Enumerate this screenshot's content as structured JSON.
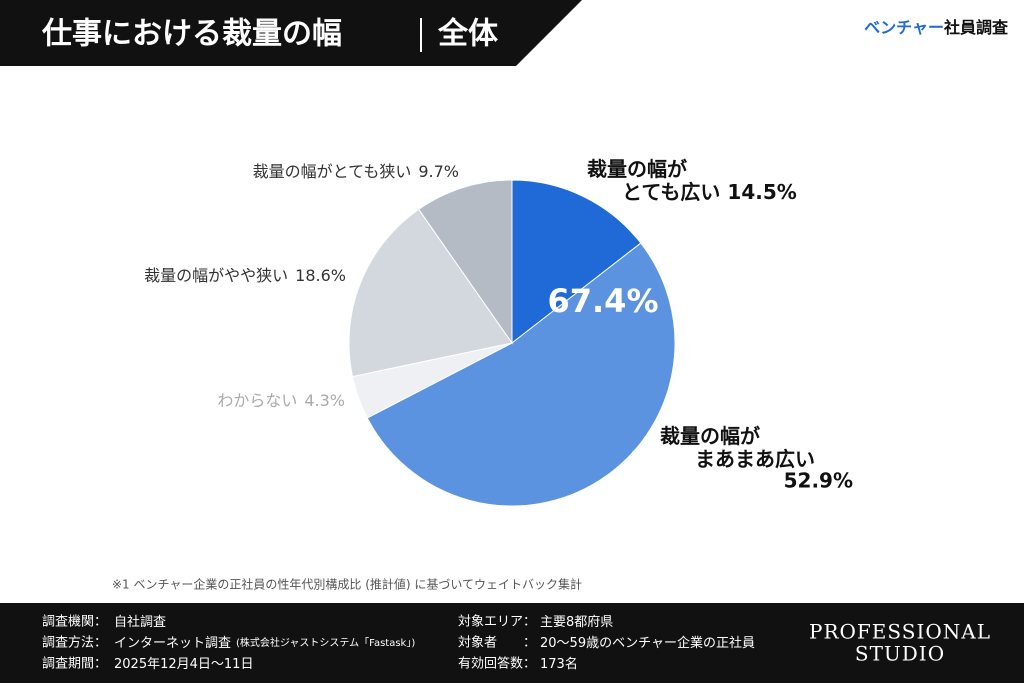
{
  "page": {
    "title": "仕事における裁量の幅",
    "subtitle": "全体",
    "brand": [
      "ベンチャー",
      "社員調査"
    ],
    "footnote": "※1 ベンチャー企業の正社員の性年代別構成比 (推計値) に基づいてウェイトバック集計",
    "info": [
      [
        "調査機関：",
        "自社調査",
        ""
      ],
      [
        "調査方法：",
        "インターネット調査",
        "(株式会社ジャストシステム「Fastask」)"
      ],
      [
        "調査期間：",
        "2025年12月4日〜11日",
        ""
      ],
      [
        "対象エリア：",
        "主要8都府県",
        ""
      ],
      [
        "対象者　　：",
        "20〜59歳のベンチャー企業の正社員",
        ""
      ],
      [
        "有効回答数：",
        "173名",
        ""
      ]
    ],
    "logo": [
      "PROFESSIONAL",
      "STUDIO"
    ]
  },
  "chart_data": {
    "type": "pie",
    "center_label": "67.4%",
    "categories": [
      [
        "裁量の幅が",
        "とても広い"
      ],
      [
        "裁量の幅が",
        "まあまあ広い"
      ],
      [
        "わからない"
      ],
      [
        "裁量の幅がやや狭い"
      ],
      [
        "裁量の幅がとても狭い"
      ]
    ],
    "values": [
      14.5,
      52.9,
      4.3,
      18.6,
      9.7
    ],
    "value_labels": [
      "14.5%",
      "52.9%",
      "4.3%",
      "18.6%",
      "9.7%"
    ],
    "colors": [
      "#1f6ad7",
      "#5b93e0",
      "#eef0f3",
      "#d3d8de",
      "#b4bbc4"
    ]
  }
}
